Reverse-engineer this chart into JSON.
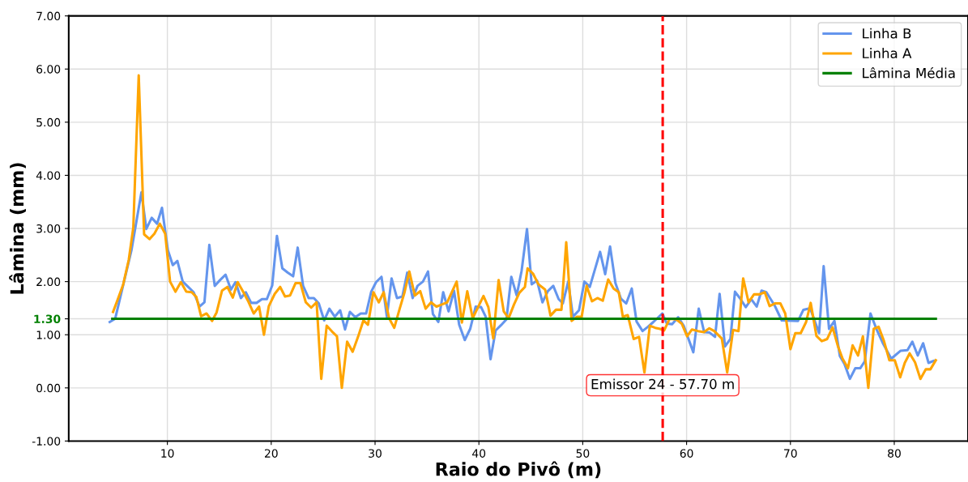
{
  "chart_data": {
    "type": "line",
    "xlabel": "Raio do Pivô (m)",
    "ylabel": "Lâmina (mm)",
    "xlim": [
      0.5,
      87.1
    ],
    "xticks": [
      10,
      20,
      30,
      40,
      50,
      60,
      70,
      80
    ],
    "ylim": [
      -1,
      7
    ],
    "yticks": [
      {
        "value": -1,
        "label": "-1.00"
      },
      {
        "value": 0,
        "label": "0.00"
      },
      {
        "value": 1,
        "label": "1.00"
      },
      {
        "value": 1.3,
        "label": "1.30"
      },
      {
        "value": 2,
        "label": "2.00"
      },
      {
        "value": 3,
        "label": "3.00"
      },
      {
        "value": 4,
        "label": "4.00"
      },
      {
        "value": 5,
        "label": "5.00"
      },
      {
        "value": 6,
        "label": "6.00"
      },
      {
        "value": 7,
        "label": "7.00"
      }
    ],
    "grid": true,
    "legend": "top right",
    "line_style": "solid",
    "series": [
      {
        "name": "Linha B",
        "color": "#6495ed",
        "x": [
          4.45,
          4.97,
          6.54,
          6.98,
          7.5,
          7.97,
          8.49,
          9.01,
          9.48,
          10.05,
          10.52,
          10.96,
          11.48,
          12.0,
          12.53,
          13.1,
          13.57,
          14.04,
          14.56,
          15.08,
          15.6,
          16.12,
          16.56,
          17.08,
          17.55,
          18.07,
          18.59,
          19.11,
          19.58,
          20.1,
          20.55,
          21.07,
          21.59,
          22.11,
          22.55,
          23.07,
          23.6,
          24.11,
          24.58,
          25.1,
          25.6,
          26.12,
          26.64,
          27.11,
          27.58,
          28.1,
          28.62,
          29.14,
          29.63,
          30.1,
          30.62,
          31.14,
          31.59,
          32.11,
          32.63,
          33.1,
          33.62,
          34.09,
          34.61,
          35.1,
          35.57,
          36.09,
          36.56,
          37.08,
          37.6,
          38.1,
          38.64,
          39.16,
          39.69,
          40.21,
          40.65,
          41.12,
          41.61,
          42.13,
          42.65,
          43.12,
          43.64,
          44.11,
          44.63,
          45.08,
          45.6,
          46.12,
          46.64,
          47.16,
          47.68,
          48.08,
          48.6,
          49.06,
          49.64,
          50.16,
          50.68,
          51.67,
          52.16,
          52.63,
          53.15,
          53.67,
          54.19,
          54.72,
          55.18,
          55.76,
          56.28,
          56.8,
          57.66,
          58.1,
          58.62,
          59.19,
          59.72,
          60.65,
          61.17,
          61.69,
          62.22,
          62.74,
          63.18,
          63.7,
          64.22,
          64.66,
          65.13,
          65.7,
          66.23,
          66.75,
          67.22,
          67.68,
          68.51,
          69.16,
          70.73,
          71.25,
          71.9,
          72.76,
          73.2,
          73.72,
          74.24,
          74.76,
          75.2,
          75.73,
          76.25,
          76.72,
          77.16,
          77.71,
          78.28,
          78.93,
          79.71,
          80.62,
          81.27,
          81.74,
          82.26,
          82.78,
          83.3,
          83.8
        ],
        "values": [
          1.24,
          1.3,
          2.59,
          3.09,
          3.68,
          2.99,
          3.2,
          3.09,
          3.39,
          2.59,
          2.31,
          2.39,
          2.0,
          1.9,
          1.8,
          1.53,
          1.61,
          2.69,
          1.92,
          2.03,
          2.13,
          1.85,
          1.99,
          1.69,
          1.8,
          1.6,
          1.6,
          1.67,
          1.67,
          1.93,
          2.86,
          2.25,
          2.17,
          2.1,
          2.64,
          1.92,
          1.69,
          1.69,
          1.59,
          1.27,
          1.49,
          1.34,
          1.46,
          1.1,
          1.43,
          1.33,
          1.4,
          1.4,
          1.81,
          1.99,
          2.09,
          1.34,
          2.06,
          1.69,
          1.72,
          2.17,
          1.69,
          1.92,
          2.0,
          2.19,
          1.39,
          1.24,
          1.8,
          1.44,
          1.83,
          1.19,
          0.9,
          1.11,
          1.53,
          1.52,
          1.34,
          0.54,
          1.08,
          1.18,
          1.29,
          2.09,
          1.74,
          2.2,
          2.99,
          1.95,
          2.02,
          1.61,
          1.82,
          1.92,
          1.67,
          1.59,
          2.0,
          1.34,
          1.46,
          2.0,
          1.9,
          2.56,
          2.14,
          2.66,
          1.97,
          1.68,
          1.59,
          1.87,
          1.25,
          1.07,
          1.15,
          1.24,
          1.4,
          1.21,
          1.2,
          1.33,
          1.17,
          0.67,
          1.49,
          1.05,
          1.04,
          0.96,
          1.77,
          0.78,
          0.92,
          1.81,
          1.69,
          1.52,
          1.67,
          1.53,
          1.83,
          1.8,
          1.54,
          1.27,
          1.26,
          1.47,
          1.5,
          1.03,
          2.29,
          1.11,
          1.26,
          0.6,
          0.45,
          0.17,
          0.37,
          0.37,
          0.5,
          1.4,
          1.11,
          0.83,
          0.55,
          0.7,
          0.71,
          0.87,
          0.61,
          0.84,
          0.47,
          0.51
        ]
      },
      {
        "name": "Linha A",
        "color": "#ffa500",
        "x": [
          4.77,
          5.23,
          5.75,
          6.28,
          6.72,
          7.24,
          7.76,
          8.28,
          8.75,
          9.27,
          9.79,
          10.26,
          10.78,
          11.3,
          11.82,
          12.34,
          12.79,
          13.25,
          13.77,
          14.3,
          14.74,
          15.26,
          15.78,
          16.3,
          16.77,
          17.27,
          17.81,
          18.31,
          18.83,
          19.3,
          19.77,
          20.34,
          20.86,
          21.33,
          21.82,
          22.34,
          22.81,
          23.33,
          23.85,
          24.37,
          24.82,
          25.34,
          25.86,
          26.33,
          26.8,
          27.31,
          27.84,
          28.36,
          28.88,
          29.32,
          29.84,
          30.36,
          30.83,
          31.35,
          31.85,
          32.37,
          32.84,
          33.3,
          33.83,
          34.35,
          34.87,
          35.39,
          35.91,
          36.43,
          36.95,
          37.39,
          37.86,
          38.36,
          38.88,
          39.4,
          39.92,
          40.44,
          40.91,
          41.38,
          41.9,
          42.39,
          42.86,
          43.38,
          43.9,
          44.43,
          44.69,
          45.21,
          45.73,
          46.38,
          46.9,
          47.42,
          47.95,
          48.41,
          48.93,
          49.45,
          49.9,
          50.37,
          50.89,
          51.41,
          51.93,
          52.45,
          52.97,
          53.47,
          53.86,
          54.33,
          54.9,
          55.42,
          55.94,
          56.46,
          56.98,
          57.45,
          57.84,
          58.36,
          59.01,
          59.53,
          60.05,
          60.52,
          61.1,
          61.67,
          62.19,
          62.66,
          63.39,
          63.91,
          64.48,
          65.0,
          65.45,
          65.97,
          66.49,
          67.01,
          67.53,
          67.99,
          68.51,
          69.03,
          69.5,
          70.0,
          70.47,
          70.99,
          71.51,
          71.95,
          72.5,
          73.02,
          73.54,
          74.06,
          74.58,
          75.02,
          75.54,
          75.99,
          76.51,
          76.98,
          77.5,
          78.02,
          78.49,
          79.01,
          79.53,
          80.05,
          80.57,
          81.01,
          81.48,
          82.0,
          82.52,
          83.04,
          83.48,
          84.0
        ],
        "values": [
          1.43,
          1.67,
          1.95,
          2.41,
          3.02,
          5.88,
          2.89,
          2.8,
          2.9,
          3.09,
          2.9,
          2.0,
          1.81,
          1.99,
          1.81,
          1.8,
          1.71,
          1.35,
          1.4,
          1.26,
          1.42,
          1.83,
          1.9,
          1.7,
          1.99,
          1.82,
          1.62,
          1.4,
          1.53,
          1.0,
          1.54,
          1.77,
          1.9,
          1.72,
          1.74,
          1.97,
          1.97,
          1.61,
          1.51,
          1.61,
          0.17,
          1.17,
          1.06,
          0.97,
          0.0,
          0.87,
          0.68,
          0.96,
          1.27,
          1.19,
          1.8,
          1.61,
          1.8,
          1.31,
          1.13,
          1.49,
          1.8,
          2.19,
          1.74,
          1.82,
          1.49,
          1.61,
          1.53,
          1.57,
          1.61,
          1.8,
          2.0,
          1.23,
          1.82,
          1.31,
          1.52,
          1.73,
          1.52,
          0.93,
          2.03,
          1.44,
          1.31,
          1.57,
          1.79,
          1.9,
          2.25,
          2.15,
          1.95,
          1.85,
          1.36,
          1.47,
          1.47,
          2.74,
          1.26,
          1.34,
          1.34,
          1.92,
          1.63,
          1.69,
          1.64,
          2.04,
          1.87,
          1.8,
          1.34,
          1.37,
          0.92,
          0.96,
          0.29,
          1.17,
          1.13,
          1.11,
          1.08,
          1.3,
          1.29,
          1.21,
          0.97,
          1.1,
          1.07,
          1.05,
          1.12,
          1.07,
          0.93,
          0.29,
          1.09,
          1.07,
          2.06,
          1.61,
          1.76,
          1.76,
          1.8,
          1.54,
          1.59,
          1.59,
          1.4,
          0.73,
          1.03,
          1.03,
          1.24,
          1.6,
          0.98,
          0.88,
          0.92,
          1.14,
          0.78,
          0.55,
          0.37,
          0.8,
          0.61,
          0.97,
          0.0,
          1.11,
          1.15,
          0.88,
          0.52,
          0.52,
          0.2,
          0.47,
          0.65,
          0.48,
          0.17,
          0.35,
          0.35,
          0.52
        ]
      },
      {
        "name": "Lâmina Média",
        "color": "#008000",
        "x": [
          4.7,
          84.0
        ],
        "values": [
          1.3,
          1.3
        ]
      }
    ],
    "ref_lines": [
      {
        "axis": "x",
        "value": 57.7,
        "color": "#ff0000",
        "line_style": "dashed"
      }
    ],
    "annotations": [
      {
        "text": "Emissor 24 - 57.70 m",
        "x": 57.7,
        "y": 0.05
      }
    ]
  }
}
